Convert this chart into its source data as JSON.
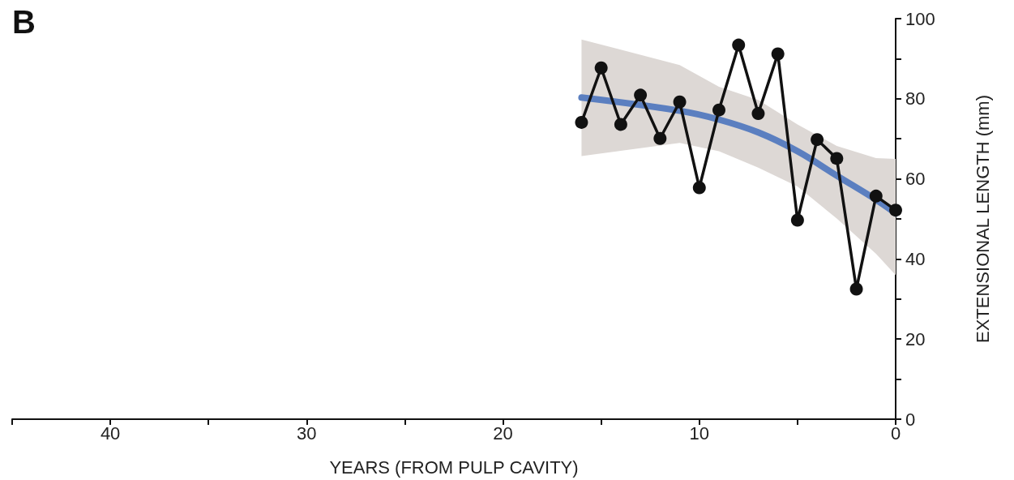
{
  "chart_data": {
    "type": "line",
    "title": "B",
    "xlabel": "YEARS (FROM PULP CAVITY)",
    "ylabel": "EXTENSIONAL LENGTH (mm)",
    "xlim": [
      45,
      0
    ],
    "xticks": [
      {
        "value": 45,
        "label": null
      },
      40,
      {
        "value": 35,
        "label": null
      },
      30,
      {
        "value": 25,
        "label": null
      },
      20,
      {
        "value": 15,
        "label": null
      },
      10,
      {
        "value": 5,
        "label": null
      },
      0
    ],
    "ylim": [
      0,
      100
    ],
    "yticks": [
      0,
      {
        "value": 10,
        "label": null
      },
      20,
      {
        "value": 30,
        "label": null
      },
      40,
      {
        "value": 50,
        "label": null
      },
      60,
      {
        "value": 70,
        "label": null
      },
      80,
      {
        "value": 90,
        "label": null
      },
      100
    ],
    "grid": false,
    "marker": "circle",
    "line_style": "solid",
    "series": [
      {
        "color": "#5b7fc0",
        "marker": "none",
        "x": [
          16,
          11,
          9,
          7,
          5,
          3,
          1,
          0
        ],
        "values": [
          80.3,
          77,
          74.8,
          71.6,
          66.9,
          60.8,
          54.8,
          51.4
        ],
        "lower": [
          65.7,
          69,
          66.9,
          62.8,
          58.1,
          50.1,
          41.3,
          36
        ],
        "upper": [
          94.8,
          88.4,
          83,
          79.7,
          73.6,
          68.2,
          65.2,
          65
        ]
      },
      {
        "color": "#111111",
        "x": [
          16,
          15,
          14,
          13,
          12,
          11,
          10,
          9,
          8,
          7,
          6,
          5,
          4,
          3,
          2,
          1,
          0
        ],
        "values": [
          74.1,
          87.7,
          73.6,
          80.9,
          70.1,
          79.2,
          57.8,
          77.2,
          93.4,
          76.3,
          91.2,
          49.7,
          69.8,
          65.1,
          32.5,
          55.7,
          52.2
        ]
      }
    ]
  }
}
